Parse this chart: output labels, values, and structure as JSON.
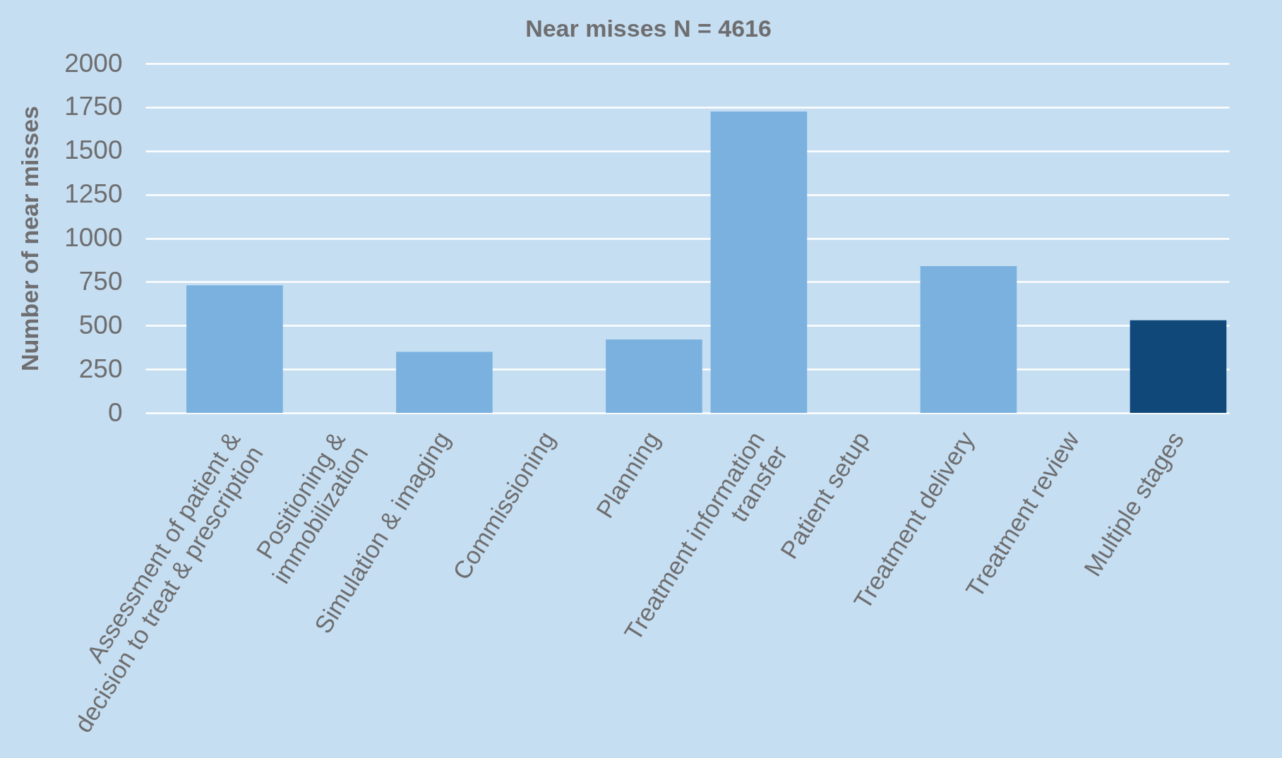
{
  "chart_data": {
    "type": "bar",
    "title": "Near misses N = 4616",
    "ylabel": "Number of near misses",
    "categories": [
      "Assessment of patient &\ndecision to treat & prescription",
      "Positioning &\nimmobilization",
      "Simulation & imaging",
      "Commissioning",
      "Planning",
      "Treatment information\ntransfer",
      "Patient setup",
      "Treatment delivery",
      "Treatment review",
      "Multiple stages"
    ],
    "values": [
      730,
      0,
      350,
      0,
      420,
      1725,
      0,
      840,
      0,
      530
    ],
    "colors": [
      "#7bb1df",
      "#7bb1df",
      "#7bb1df",
      "#7bb1df",
      "#7bb1df",
      "#7bb1df",
      "#7bb1df",
      "#7bb1df",
      "#7bb1df",
      "#10487a"
    ],
    "ylim": [
      0,
      2000
    ],
    "yticks": [
      0,
      250,
      500,
      750,
      1000,
      1250,
      1500,
      1750,
      2000
    ],
    "grid": "y"
  }
}
